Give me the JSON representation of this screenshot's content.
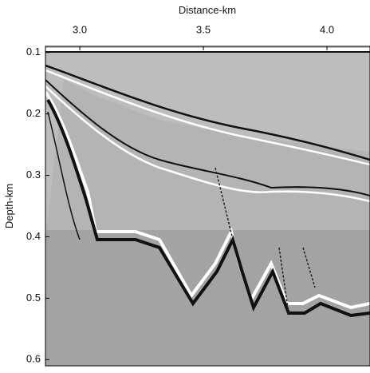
{
  "chart_data": {
    "type": "image",
    "xlabel": "Distance-km",
    "ylabel": "Depth-km",
    "xlim": [
      2.861,
      4.174
    ],
    "xticks": [
      {
        "value": 3,
        "label": "3.0"
      },
      3.5,
      {
        "value": 4,
        "label": "4.0"
      }
    ],
    "ylim": [
      0.09,
      0.61
    ],
    "yticks": [
      0.1,
      0.2,
      0.3,
      0.4,
      0.5,
      0.6
    ],
    "y_inverted": true,
    "x_axis_position": "top"
  }
}
